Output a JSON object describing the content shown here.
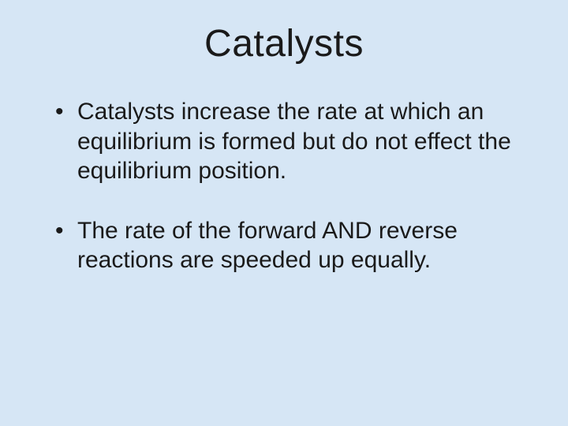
{
  "slide": {
    "background_color": "#d6e6f5",
    "text_color": "#1a1a1a",
    "font_family": "Comic Sans MS",
    "title": {
      "text": "Catalysts",
      "fontsize": 48,
      "align": "center"
    },
    "bullets": [
      "Catalysts increase the rate at which an equilibrium is formed but do not effect the equilibrium position.",
      "The rate of the forward AND reverse reactions are speeded up equally."
    ],
    "bullet_fontsize": 30
  }
}
